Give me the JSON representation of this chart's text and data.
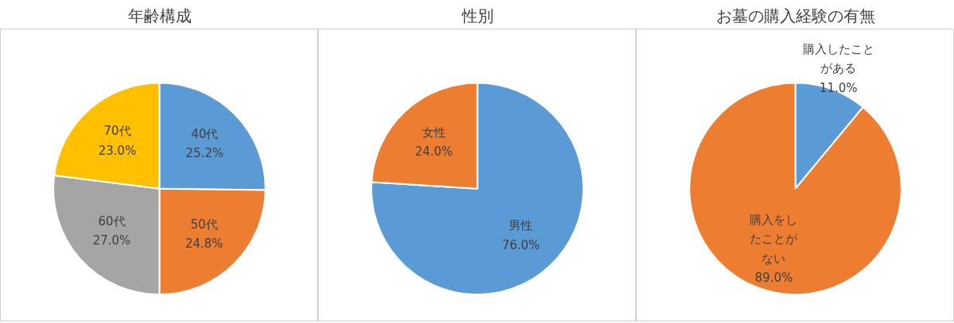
{
  "chart_data": [
    {
      "type": "pie",
      "title": "年齢構成",
      "categories": [
        "40代",
        "50代",
        "60代",
        "70代"
      ],
      "values": [
        25.2,
        24.8,
        27.0,
        23.0
      ],
      "colors": [
        "#5b9bd5",
        "#ed7d31",
        "#a5a5a5",
        "#ffc000"
      ],
      "value_labels": [
        "25.2%",
        "24.8%",
        "27.0%",
        "23.0%"
      ]
    },
    {
      "type": "pie",
      "title": "性別",
      "categories": [
        "男性",
        "女性"
      ],
      "values": [
        76.0,
        24.0
      ],
      "colors": [
        "#5b9bd5",
        "#ed7d31"
      ],
      "value_labels": [
        "76.0%",
        "24.0%"
      ]
    },
    {
      "type": "pie",
      "title": "お墓の購入経験の有無",
      "categories": [
        "購入したことがある",
        "購入をしたことがない"
      ],
      "values": [
        11.0,
        89.0
      ],
      "colors": [
        "#5b9bd5",
        "#ed7d31"
      ],
      "value_labels": [
        "11.0%",
        "89.0%"
      ]
    }
  ]
}
